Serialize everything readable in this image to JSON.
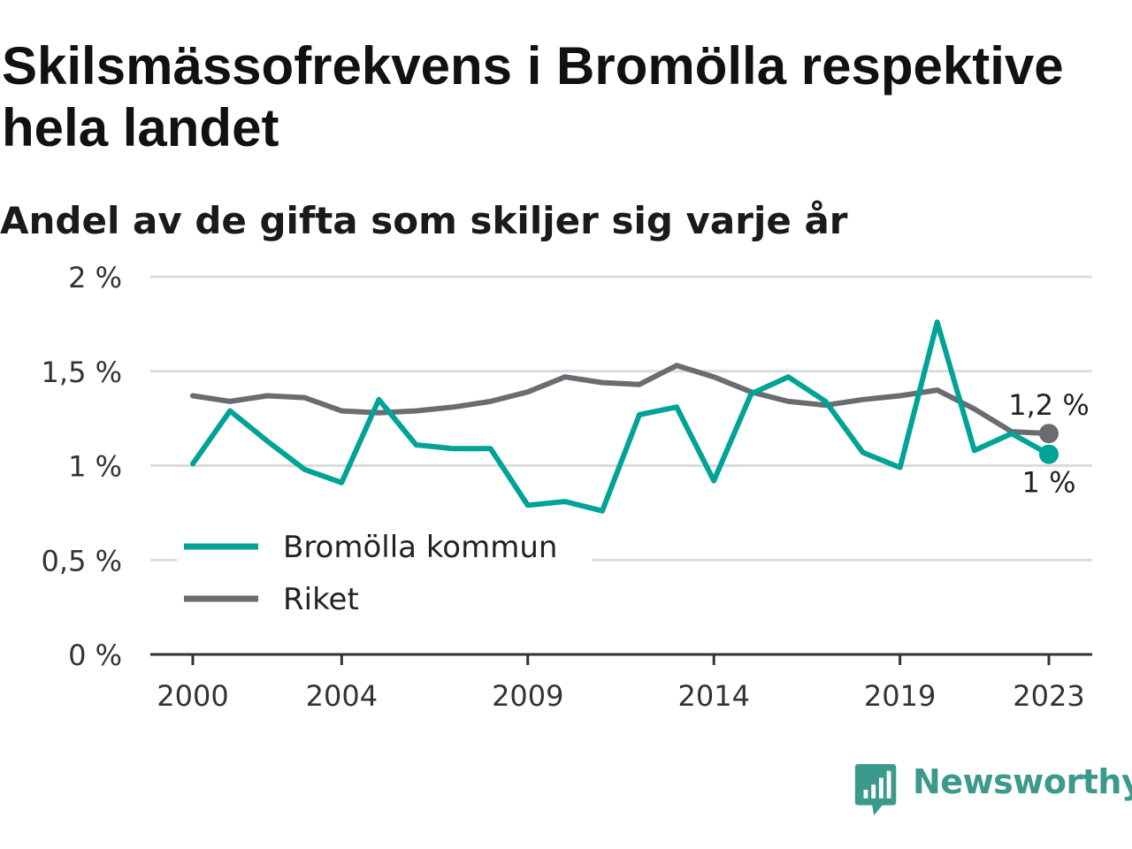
{
  "header": {
    "title": "Skilsmässofrekvens i Bromölla respektive hela landet",
    "subtitle": "Andel av de gifta som skiljer sig varje år"
  },
  "brand": {
    "name": "Newsworthy",
    "icon": "newsworthy-logo-icon",
    "color": "#3b9a8c"
  },
  "chart_data": {
    "type": "line",
    "x": [
      2000,
      2001,
      2002,
      2003,
      2004,
      2005,
      2006,
      2007,
      2008,
      2009,
      2010,
      2011,
      2012,
      2013,
      2014,
      2015,
      2016,
      2017,
      2018,
      2019,
      2020,
      2021,
      2022,
      2023
    ],
    "x_ticks": [
      2000,
      2004,
      2009,
      2014,
      2019,
      2023
    ],
    "x_tick_labels": [
      "2000",
      "2004",
      "2009",
      "2014",
      "2019",
      "2023"
    ],
    "ylim": [
      0,
      2
    ],
    "y_ticks": [
      0,
      0.5,
      1,
      1.5,
      2
    ],
    "y_tick_labels": [
      "0 %",
      "0,5 %",
      "1 %",
      "1,5 %",
      "2 %"
    ],
    "grid": true,
    "legend_position": "bottom-left",
    "series": [
      {
        "name": "Bromölla kommun",
        "color": "#00a396",
        "values": [
          1.01,
          1.29,
          1.13,
          0.98,
          0.91,
          1.35,
          1.11,
          1.09,
          1.09,
          0.79,
          0.81,
          0.76,
          1.27,
          1.31,
          0.92,
          1.38,
          1.47,
          1.34,
          1.07,
          0.99,
          1.76,
          1.08,
          1.17,
          1.06
        ],
        "end_label": "1 %"
      },
      {
        "name": "Riket",
        "color": "#6c6b72",
        "values": [
          1.37,
          1.34,
          1.37,
          1.36,
          1.29,
          1.28,
          1.29,
          1.31,
          1.34,
          1.39,
          1.47,
          1.44,
          1.43,
          1.53,
          1.47,
          1.39,
          1.34,
          1.32,
          1.35,
          1.37,
          1.4,
          1.3,
          1.18,
          1.17
        ],
        "end_label": "1,2 %"
      }
    ]
  }
}
